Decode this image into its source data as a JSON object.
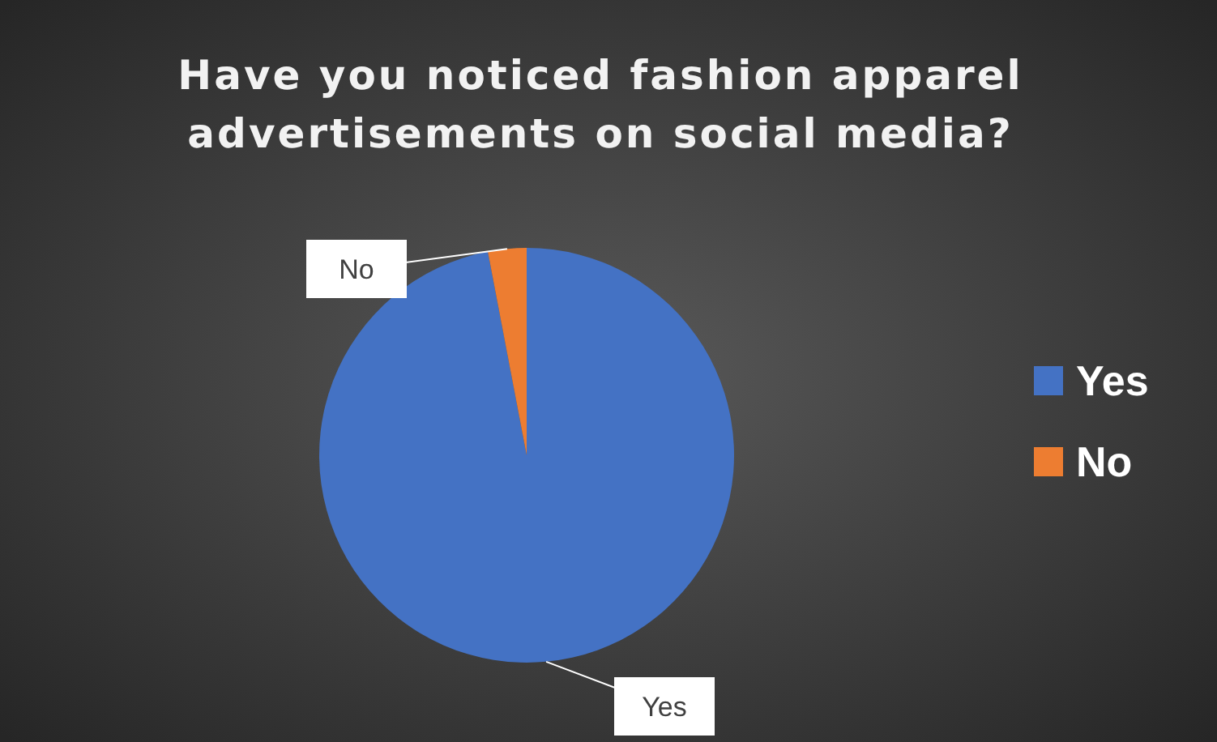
{
  "chart_data": {
    "type": "pie",
    "title": "Have you noticed fashion apparel advertisements on social media?",
    "categories": [
      "Yes",
      "No"
    ],
    "values": [
      97,
      3
    ],
    "colors": [
      "#4472c4",
      "#ed7d31"
    ],
    "legend": "right"
  }
}
